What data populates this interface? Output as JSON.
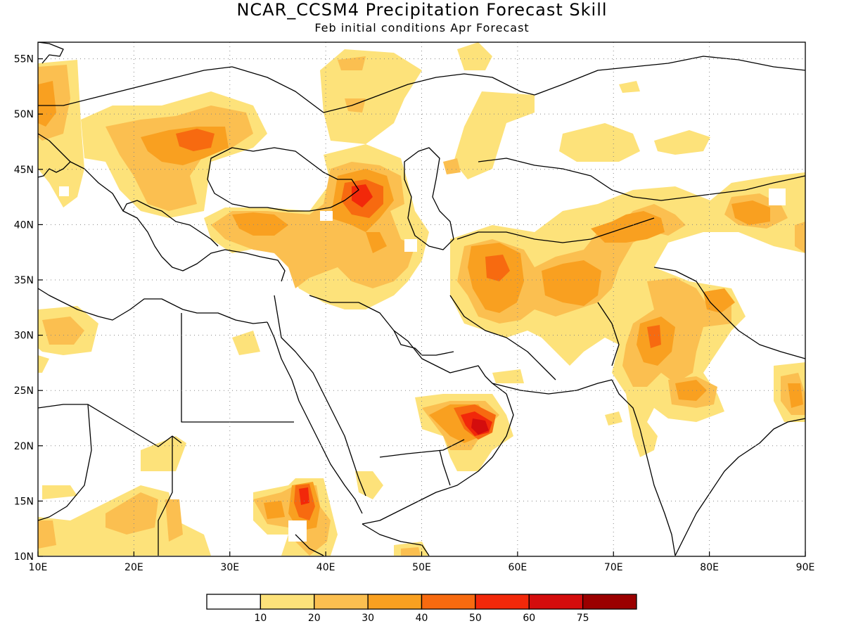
{
  "title": "NCAR_CCSM4 Precipitation Forecast Skill",
  "subtitle": "Feb initial conditions  Apr Forecast",
  "x_axis": {
    "ticks": [
      {
        "value": 10,
        "label": "10E"
      },
      {
        "value": 20,
        "label": "20E"
      },
      {
        "value": 30,
        "label": "30E"
      },
      {
        "value": 40,
        "label": "40E"
      },
      {
        "value": 50,
        "label": "50E"
      },
      {
        "value": 60,
        "label": "60E"
      },
      {
        "value": 70,
        "label": "70E"
      },
      {
        "value": 80,
        "label": "80E"
      },
      {
        "value": 90,
        "label": "90E"
      }
    ],
    "range": [
      10,
      90
    ]
  },
  "y_axis": {
    "ticks": [
      {
        "value": 10,
        "label": "10N"
      },
      {
        "value": 15,
        "label": "15N"
      },
      {
        "value": 20,
        "label": "20N"
      },
      {
        "value": 25,
        "label": "25N"
      },
      {
        "value": 30,
        "label": "30N"
      },
      {
        "value": 35,
        "label": "35N"
      },
      {
        "value": 40,
        "label": "40N"
      },
      {
        "value": 45,
        "label": "45N"
      },
      {
        "value": 50,
        "label": "50N"
      },
      {
        "value": 55,
        "label": "55N"
      }
    ],
    "range": [
      10,
      56.5
    ]
  },
  "grid": "dotted",
  "colorbar": {
    "colors": [
      "#ffffff",
      "#fde27a",
      "#fbbf50",
      "#f9a020",
      "#f76a10",
      "#f2280a",
      "#d40d0d",
      "#9b0000"
    ],
    "labels": [
      "10",
      "20",
      "30",
      "40",
      "50",
      "60",
      "75"
    ]
  },
  "skill_regions": [
    {
      "lon": 56.5,
      "lat": 21.5,
      "level": 6,
      "rx": 1.8,
      "ry": 1.6
    },
    {
      "lon": 55,
      "lat": 22.5,
      "level": 5,
      "rx": 3.5,
      "ry": 2.2
    },
    {
      "lon": 38,
      "lat": 14.5,
      "level": 5,
      "rx": 1.4,
      "ry": 2.2
    },
    {
      "lon": 43.5,
      "lat": 42.5,
      "level": 5,
      "rx": 2.8,
      "ry": 1.6
    },
    {
      "lon": 18,
      "lat": 47,
      "level": 5,
      "rx": 2.5,
      "ry": 1.3
    },
    {
      "lon": 73.5,
      "lat": 30,
      "level": 5,
      "rx": 1.2,
      "ry": 2.0
    }
  ]
}
